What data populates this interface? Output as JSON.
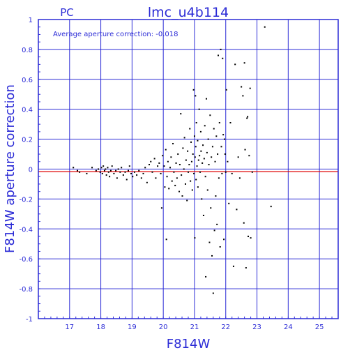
{
  "chart_data": {
    "type": "scatter",
    "title": "lmc_u4b114",
    "camera_label": "PC",
    "annotation": "Average aperture correction: -0.018",
    "xlabel": "F814W",
    "ylabel": "F814W aperture correction",
    "xlim": [
      16.0,
      25.6
    ],
    "ylim": [
      -1,
      1
    ],
    "xticks": [
      17,
      18,
      19,
      20,
      21,
      22,
      23,
      24,
      25
    ],
    "yticks": [
      -1,
      -0.8,
      -0.6,
      -0.4,
      -0.2,
      0,
      0.2,
      0.4,
      0.6,
      0.8,
      1
    ],
    "grid": true,
    "reference_line": {
      "y": -0.018,
      "color": "#e00000"
    },
    "colors": {
      "axis": "#2b2bd6",
      "grid": "#2b2bd6",
      "points": "#000000"
    },
    "points": [
      [
        17.12,
        0.01
      ],
      [
        17.25,
        -0.01
      ],
      [
        17.32,
        -0.02
      ],
      [
        17.55,
        -0.03
      ],
      [
        17.72,
        0.01
      ],
      [
        17.85,
        -0.01
      ],
      [
        17.92,
        0.0
      ],
      [
        17.98,
        -0.02
      ],
      [
        18.02,
        0.01
      ],
      [
        18.05,
        -0.03
      ],
      [
        18.08,
        0.02
      ],
      [
        18.12,
        -0.01
      ],
      [
        18.15,
        0.0
      ],
      [
        18.18,
        -0.04
      ],
      [
        18.22,
        0.01
      ],
      [
        18.25,
        -0.02
      ],
      [
        18.28,
        -0.05
      ],
      [
        18.32,
        -0.01
      ],
      [
        18.36,
        0.02
      ],
      [
        18.42,
        -0.03
      ],
      [
        18.48,
        -0.01
      ],
      [
        18.52,
        -0.06
      ],
      [
        18.56,
        0.0
      ],
      [
        18.62,
        -0.02
      ],
      [
        18.66,
        0.01
      ],
      [
        18.72,
        -0.04
      ],
      [
        18.78,
        -0.02
      ],
      [
        18.83,
        -0.07
      ],
      [
        18.88,
        -0.01
      ],
      [
        18.92,
        0.02
      ],
      [
        18.97,
        -0.03
      ],
      [
        19.02,
        -0.05
      ],
      [
        19.08,
        -0.02
      ],
      [
        19.15,
        -0.04
      ],
      [
        19.22,
        -0.01
      ],
      [
        19.3,
        -0.06
      ],
      [
        19.36,
        -0.03
      ],
      [
        19.42,
        0.01
      ],
      [
        19.48,
        -0.09
      ],
      [
        19.55,
        0.03
      ],
      [
        19.6,
        0.05
      ],
      [
        19.65,
        -0.02
      ],
      [
        19.72,
        0.07
      ],
      [
        19.76,
        -0.06
      ],
      [
        19.82,
        0.02
      ],
      [
        19.87,
        0.04
      ],
      [
        19.92,
        -0.03
      ],
      [
        19.95,
        -0.26
      ],
      [
        19.98,
        0.09
      ],
      [
        20.03,
        0.02
      ],
      [
        20.05,
        -0.12
      ],
      [
        20.08,
        0.13
      ],
      [
        20.1,
        -0.47
      ],
      [
        20.12,
        -0.05
      ],
      [
        20.15,
        0.05
      ],
      [
        20.18,
        -0.13
      ],
      [
        20.22,
        0.01
      ],
      [
        20.25,
        0.08
      ],
      [
        20.28,
        -0.08
      ],
      [
        20.31,
        0.17
      ],
      [
        20.34,
        -0.02
      ],
      [
        20.38,
        -0.11
      ],
      [
        20.41,
        0.04
      ],
      [
        20.44,
        -0.06
      ],
      [
        20.47,
        0.1
      ],
      [
        20.51,
        -0.15
      ],
      [
        20.53,
        0.03
      ],
      [
        20.56,
        0.37
      ],
      [
        20.58,
        -0.04
      ],
      [
        20.61,
        -0.18
      ],
      [
        20.63,
        0.14
      ],
      [
        20.66,
        0.0
      ],
      [
        20.68,
        0.21
      ],
      [
        20.71,
        -0.1
      ],
      [
        20.73,
        0.06
      ],
      [
        20.76,
        -0.21
      ],
      [
        20.78,
        0.12
      ],
      [
        20.8,
        -0.02
      ],
      [
        20.83,
        0.03
      ],
      [
        20.85,
        0.27
      ],
      [
        20.87,
        -0.08
      ],
      [
        20.89,
        0.18
      ],
      [
        20.91,
        0.05
      ],
      [
        20.93,
        -0.14
      ],
      [
        20.95,
        0.1
      ],
      [
        20.97,
        0.53
      ],
      [
        20.98,
        -0.03
      ],
      [
        21.0,
        0.22
      ],
      [
        21.01,
        -0.46
      ],
      [
        21.02,
        0.08
      ],
      [
        21.03,
        0.49
      ],
      [
        21.04,
        0.15
      ],
      [
        21.05,
        -0.07
      ],
      [
        21.06,
        0.31
      ],
      [
        21.08,
        0.02
      ],
      [
        21.1,
        0.19
      ],
      [
        21.11,
        -0.12
      ],
      [
        21.13,
        0.06
      ],
      [
        21.15,
        0.4
      ],
      [
        21.16,
        0.09
      ],
      [
        21.18,
        -0.02
      ],
      [
        21.2,
        0.25
      ],
      [
        21.21,
        0.12
      ],
      [
        21.23,
        -0.2
      ],
      [
        21.25,
        0.04
      ],
      [
        21.27,
        0.16
      ],
      [
        21.29,
        -0.31
      ],
      [
        21.31,
        0.07
      ],
      [
        21.33,
        0.29
      ],
      [
        21.35,
        -0.05
      ],
      [
        21.36,
        -0.72
      ],
      [
        21.38,
        0.47
      ],
      [
        21.4,
        0.11
      ],
      [
        21.42,
        -0.14
      ],
      [
        21.44,
        0.2
      ],
      [
        21.46,
        0.03
      ],
      [
        21.48,
        -0.49
      ],
      [
        21.5,
        0.36
      ],
      [
        21.52,
        -0.26
      ],
      [
        21.54,
        0.08
      ],
      [
        21.56,
        -0.58
      ],
      [
        21.58,
        0.15
      ],
      [
        21.6,
        -0.83
      ],
      [
        21.62,
        0.27
      ],
      [
        21.64,
        -0.41
      ],
      [
        21.66,
        0.05
      ],
      [
        21.68,
        -0.18
      ],
      [
        21.7,
        0.22
      ],
      [
        21.72,
        -0.37
      ],
      [
        21.74,
        0.1
      ],
      [
        21.76,
        0.76
      ],
      [
        21.78,
        -0.06
      ],
      [
        21.8,
        0.31
      ],
      [
        21.82,
        -0.52
      ],
      [
        21.84,
        0.8
      ],
      [
        21.86,
        0.15
      ],
      [
        21.88,
        -0.03
      ],
      [
        21.9,
        0.74
      ],
      [
        21.92,
        0.23
      ],
      [
        21.94,
        -0.47
      ],
      [
        21.96,
        0.2
      ],
      [
        21.98,
        0.1
      ],
      [
        22.0,
        -0.02
      ],
      [
        22.02,
        0.53
      ],
      [
        22.06,
        0.05
      ],
      [
        22.1,
        -0.23
      ],
      [
        22.15,
        0.31
      ],
      [
        22.2,
        -0.03
      ],
      [
        22.25,
        -0.65
      ],
      [
        22.3,
        0.7
      ],
      [
        22.35,
        -0.27
      ],
      [
        22.4,
        0.08
      ],
      [
        22.45,
        -0.06
      ],
      [
        22.5,
        0.55
      ],
      [
        22.55,
        0.49
      ],
      [
        22.58,
        -0.36
      ],
      [
        22.6,
        0.71
      ],
      [
        22.62,
        0.13
      ],
      [
        22.65,
        -0.66
      ],
      [
        22.68,
        0.34
      ],
      [
        22.7,
        0.35
      ],
      [
        22.72,
        -0.45
      ],
      [
        22.75,
        0.09
      ],
      [
        22.78,
        0.54
      ],
      [
        22.8,
        -0.46
      ],
      [
        22.85,
        -0.02
      ],
      [
        23.25,
        0.95
      ],
      [
        23.45,
        -0.25
      ]
    ]
  }
}
